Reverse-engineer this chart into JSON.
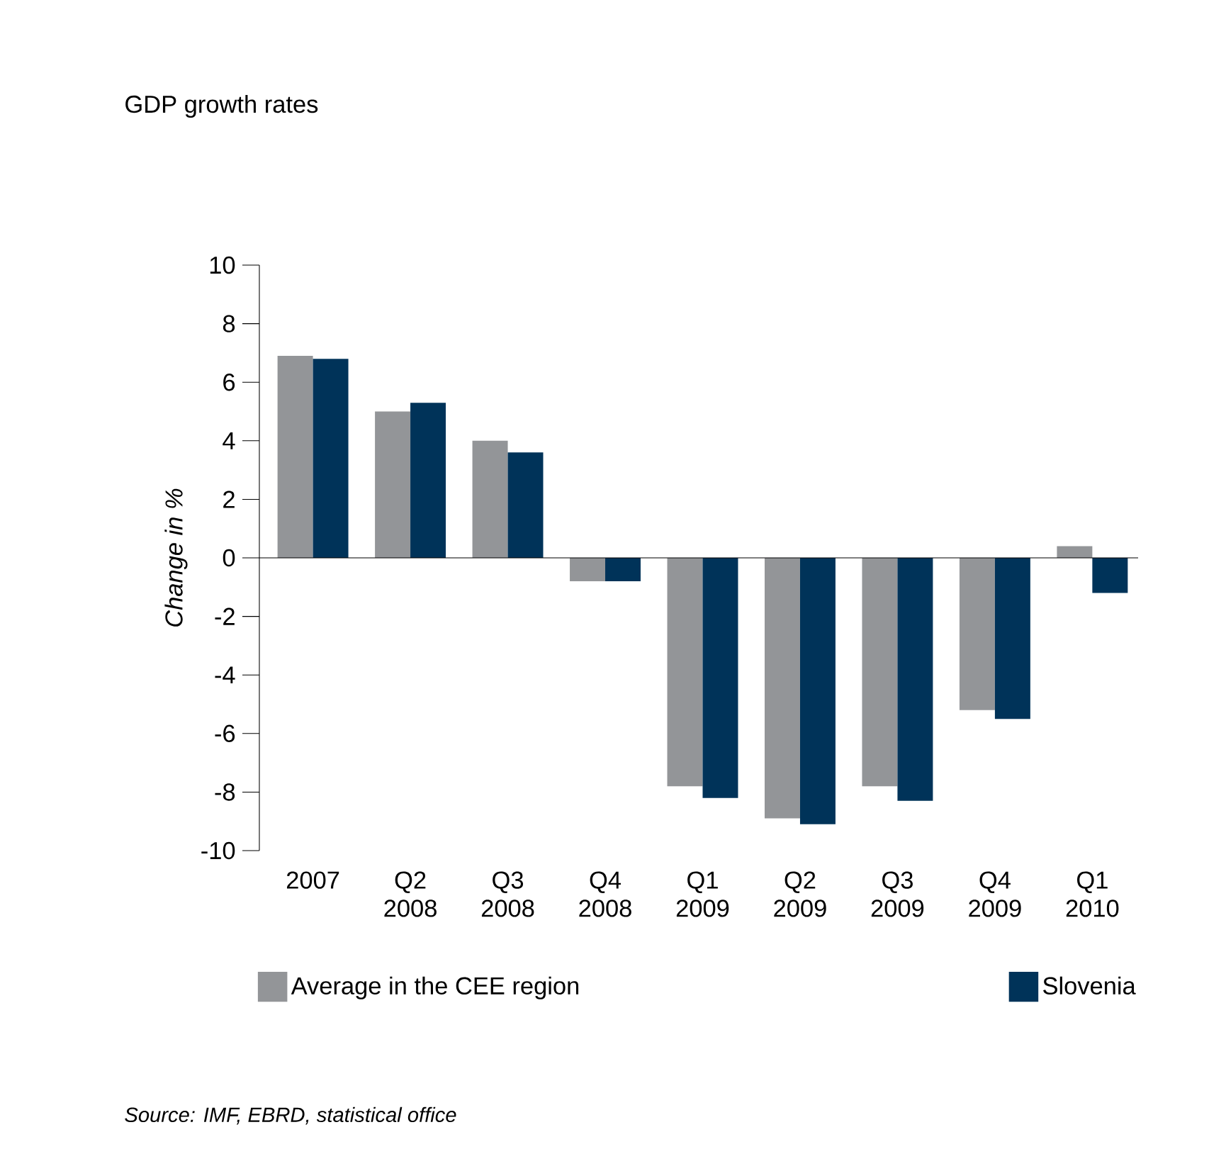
{
  "chart_data": {
    "type": "bar",
    "title": "GDP growth rates",
    "ylabel": "Change in %",
    "categories": [
      "2007",
      "Q2 2008",
      "Q3 2008",
      "Q4 2008",
      "Q1 2009",
      "Q2 2009",
      "Q3 2009",
      "Q4 2009",
      "Q1 2010"
    ],
    "series": [
      {
        "name": "Average in the CEE region",
        "color": "#939598",
        "values": [
          6.9,
          5.0,
          4.0,
          -0.8,
          -7.8,
          -8.9,
          -7.8,
          -5.2,
          0.4
        ]
      },
      {
        "name": "Slovenia",
        "color": "#003359",
        "values": [
          6.8,
          5.3,
          3.6,
          -0.8,
          -8.2,
          -9.1,
          -8.3,
          -5.5,
          -1.2
        ]
      }
    ],
    "ylim": [
      -10,
      10
    ],
    "yticks": [
      -10,
      -8,
      -6,
      -4,
      -2,
      0,
      2,
      4,
      6,
      8,
      10
    ],
    "legend": "bottom",
    "annotations": [
      "Source: IMF, EBRD, statistical office"
    ]
  }
}
